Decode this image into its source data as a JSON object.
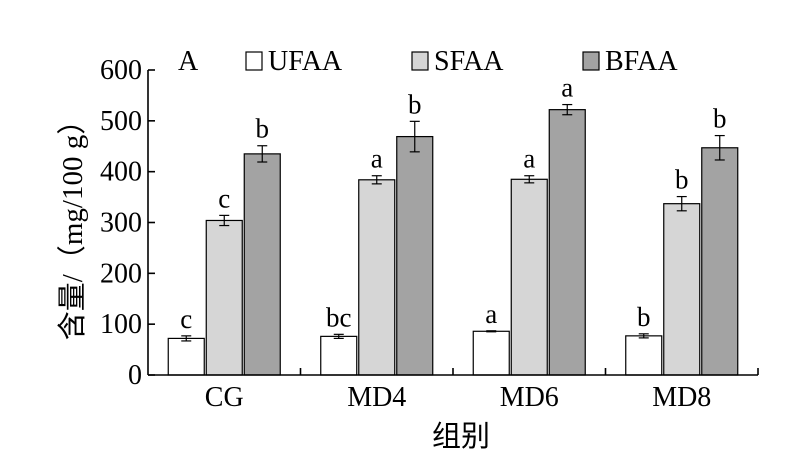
{
  "chart_data": {
    "type": "bar",
    "panel_label": "A",
    "xlabel": "组别",
    "ylabel": "含量/（mg/100 g）",
    "ylim": [
      0,
      600
    ],
    "yticks": [
      0,
      100,
      200,
      300,
      400,
      500,
      600
    ],
    "grid": false,
    "legend_position": "top",
    "categories": [
      "CG",
      "MD4",
      "MD6",
      "MD8"
    ],
    "series": [
      {
        "name": "UFAA",
        "color": "#ffffff",
        "values": [
          72,
          76,
          86,
          77
        ],
        "errors": [
          5,
          4,
          1,
          4
        ],
        "significance": [
          "c",
          "bc",
          "a",
          "b"
        ]
      },
      {
        "name": "SFAA",
        "color": "#d6d6d6",
        "values": [
          304,
          384,
          385,
          337
        ],
        "errors": [
          10,
          8,
          7,
          14
        ],
        "significance": [
          "c",
          "a",
          "a",
          "b"
        ]
      },
      {
        "name": "BFAA",
        "color": "#a3a3a3",
        "values": [
          435,
          469,
          522,
          447
        ],
        "errors": [
          16,
          30,
          10,
          24
        ],
        "significance": [
          "b",
          "b",
          "a",
          "b"
        ]
      }
    ]
  }
}
